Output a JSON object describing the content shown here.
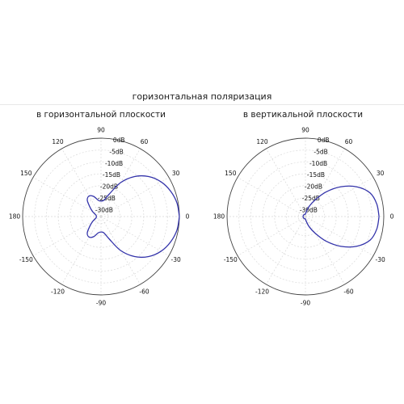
{
  "figure_title": "горизонтальная поляризация",
  "chart_data": [
    {
      "type": "polar-line",
      "title": "в горизонтальной плоскости",
      "angle_unit": "deg",
      "angle_ticks": [
        0,
        30,
        60,
        90,
        120,
        150,
        180,
        -150,
        -120,
        -90,
        -60,
        -30
      ],
      "angle_tick_labels": [
        "0",
        "30",
        "60",
        "90",
        "120",
        "150",
        "180",
        "-150",
        "-120",
        "-90",
        "-60",
        "-30"
      ],
      "r_ticks": [
        0,
        -5,
        -10,
        -15,
        -20,
        -25,
        -30
      ],
      "r_tick_labels": [
        "0dB",
        "-5dB",
        "-10dB",
        "-15dB",
        "-20dB",
        "-25dB",
        "-30dB"
      ],
      "r_range": [
        -33,
        0
      ],
      "grid": true,
      "series": [
        {
          "color": "#3333aa",
          "theta": [
            0,
            10,
            20,
            30,
            40,
            50,
            60,
            70,
            80,
            90,
            100,
            110,
            120,
            130,
            140,
            150,
            160,
            170,
            180,
            190,
            200,
            210,
            220,
            230,
            240,
            250,
            260,
            270,
            280,
            290,
            300,
            310,
            320,
            330,
            340,
            350,
            360
          ],
          "r": [
            0,
            -0.5,
            -1.8,
            -3.8,
            -6.8,
            -11,
            -16.5,
            -23,
            -26,
            -26.5,
            -26,
            -24,
            -23,
            -24,
            -27,
            -29,
            -30.5,
            -31,
            -31,
            -31,
            -30.5,
            -29,
            -27,
            -24,
            -23,
            -24,
            -26,
            -26.5,
            -26,
            -23,
            -16.5,
            -11,
            -6.8,
            -3.8,
            -1.8,
            -0.5,
            0
          ]
        }
      ]
    },
    {
      "type": "polar-line",
      "title": "в вертикальной плоскости",
      "angle_unit": "deg",
      "angle_ticks": [
        0,
        30,
        60,
        90,
        120,
        150,
        180,
        -150,
        -120,
        -90,
        -60,
        -30
      ],
      "angle_tick_labels": [
        "0",
        "30",
        "60",
        "90",
        "120",
        "150",
        "180",
        "-150",
        "-120",
        "-90",
        "-60",
        "-30"
      ],
      "r_ticks": [
        0,
        -5,
        -10,
        -15,
        -20,
        -25,
        -30
      ],
      "r_tick_labels": [
        "0dB",
        "-5dB",
        "-10dB",
        "-15dB",
        "-20dB",
        "-25dB",
        "-30dB"
      ],
      "r_range": [
        -33,
        0
      ],
      "grid": true,
      "series": [
        {
          "color": "#3333aa",
          "theta": [
            0,
            10,
            20,
            30,
            40,
            50,
            60,
            70,
            80,
            90,
            100,
            110,
            120,
            130,
            140,
            150,
            160,
            170,
            180,
            190,
            200,
            210,
            220,
            230,
            240,
            250,
            260,
            270,
            280,
            290,
            300,
            310,
            320,
            330,
            340,
            350,
            360
          ],
          "r": [
            -2,
            -2.5,
            -4,
            -8,
            -13.5,
            -19.5,
            -25,
            -28.5,
            -31,
            -32,
            -32,
            -32,
            -32,
            -32,
            -32,
            -32,
            -32,
            -32,
            -32,
            -32,
            -32,
            -32,
            -32,
            -32,
            -32,
            -32,
            -32,
            -32,
            -31,
            -28.5,
            -25,
            -19.5,
            -13.5,
            -8,
            -4,
            -2.5,
            -2
          ]
        }
      ]
    }
  ]
}
